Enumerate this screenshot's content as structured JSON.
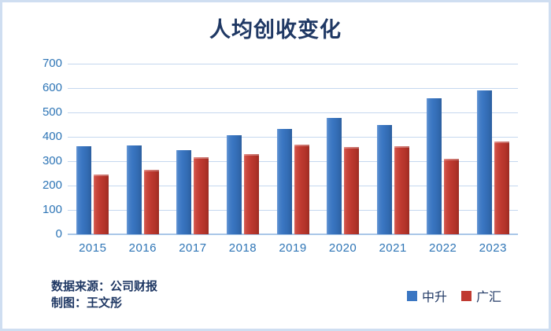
{
  "title": "人均创收变化",
  "footer": {
    "source_line1": "数据来源：公司财报",
    "source_line2": "制图：王文彤"
  },
  "colors": {
    "title": "#1F3864",
    "axis_labels": "#2E75B6",
    "gridline": "#C5D8EF",
    "axis_line": "#A9C7E8",
    "frame_border": "#CFDEF1",
    "series_blue": "#3A76C2",
    "series_red": "#C03A31"
  },
  "chart_data": {
    "type": "bar",
    "title": "人均创收变化",
    "categories": [
      "2015",
      "2016",
      "2017",
      "2018",
      "2019",
      "2020",
      "2021",
      "2022",
      "2023"
    ],
    "series": [
      {
        "name": "中升",
        "color": "#3A76C2",
        "values": [
          360,
          365,
          344,
          406,
          431,
          478,
          450,
          557,
          589
        ]
      },
      {
        "name": "广汇",
        "color": "#C03A31",
        "values": [
          246,
          265,
          315,
          328,
          368,
          357,
          362,
          311,
          382
        ]
      }
    ],
    "ylim": [
      0,
      700
    ],
    "yticks": [
      0,
      100,
      200,
      300,
      400,
      500,
      600,
      700
    ],
    "grid": true,
    "legend_position": "bottom-right",
    "xlabel": "",
    "ylabel": ""
  }
}
